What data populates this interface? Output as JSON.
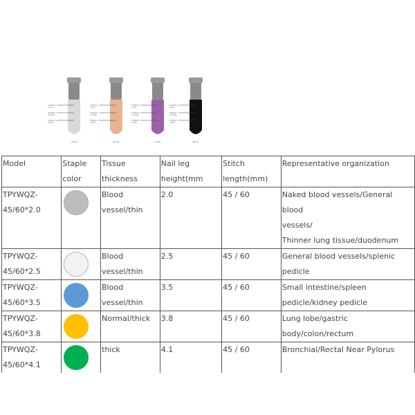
{
  "figure": {
    "cartridges": [
      {
        "caption": "White",
        "color": "#d9d9d9",
        "labels": [
          "2.5mm",
          "2.5mm",
          "2.5mm"
        ],
        "sub": [
          "inner",
          "middle",
          "outer"
        ]
      },
      {
        "caption": "Brown",
        "color": "#e8b48f",
        "labels": [
          "2.5mm",
          "2.5mm",
          "3.0mm"
        ],
        "sub": [
          "inner",
          "middle",
          "outer"
        ]
      },
      {
        "caption": "Violet",
        "color": "#9a62a8",
        "labels": [
          "3.0mm",
          "3.5mm",
          "4.0mm"
        ],
        "sub": [
          "inner",
          "middle",
          "outer"
        ]
      },
      {
        "caption": "Black",
        "color": "#111111",
        "labels": [
          "4.0mm",
          "4.5mm",
          "5.0mm"
        ],
        "sub": [
          "inner",
          "middle",
          "outer"
        ]
      }
    ]
  },
  "table": {
    "headers": [
      [
        "Model"
      ],
      [
        "Staple",
        "color"
      ],
      [
        "Tissue",
        "thickness"
      ],
      [
        "Nail leg",
        "height(mm"
      ],
      [
        "Stitch",
        "length(mm)"
      ],
      [
        "Representative organization"
      ]
    ],
    "rows": [
      {
        "model": [
          "TPYWQZ-",
          "45/60*2.0"
        ],
        "staple_color": "#bdbdbd",
        "staple_border": "#a8a8a8",
        "tissue": [
          "Blood",
          "vessel/thin"
        ],
        "height": "2.0",
        "stitch": "45 / 60",
        "organization": [
          "Naked blood vessels/General blood",
          "vessels/",
          "Thinner lung tissue/duodenum"
        ]
      },
      {
        "model": [
          "TPYWQZ-",
          "45/60*2.5"
        ],
        "staple_color": "#f2f2f2",
        "staple_border": "#b8b8b8",
        "tissue": [
          "Blood",
          "vessel/thin"
        ],
        "height": "2.5",
        "stitch": "45 / 60",
        "organization": [
          "General blood vessels/splenic",
          "pedicle"
        ]
      },
      {
        "model": [
          "TPYWQZ-",
          "45/60*3.5"
        ],
        "staple_color": "#5b9bd5",
        "staple_border": "#5b9bd5",
        "tissue": [
          "Blood",
          "vessel/thin"
        ],
        "height": "3.5",
        "stitch": "45 / 60",
        "organization": [
          "Small intestine/spleen",
          "pedicle/kidney pedicle"
        ]
      },
      {
        "model": [
          "TPYWQZ-",
          "45/60*3.8"
        ],
        "staple_color": "#ffc000",
        "staple_border": "#ffc000",
        "tissue": [
          "Normal/thick"
        ],
        "height": "3.8",
        "stitch": "45 / 60",
        "organization": [
          "Lung lobe/gastric",
          "body/colon/rectum"
        ]
      },
      {
        "model": [
          "TPYWQZ-",
          "45/60*4.1"
        ],
        "staple_color": "#00b050",
        "staple_border": "#00b050",
        "tissue": [
          "thick"
        ],
        "height": "4.1",
        "stitch": "45 / 60",
        "organization": [
          "Bronchial/Rectal Near Pylorus"
        ]
      }
    ]
  }
}
